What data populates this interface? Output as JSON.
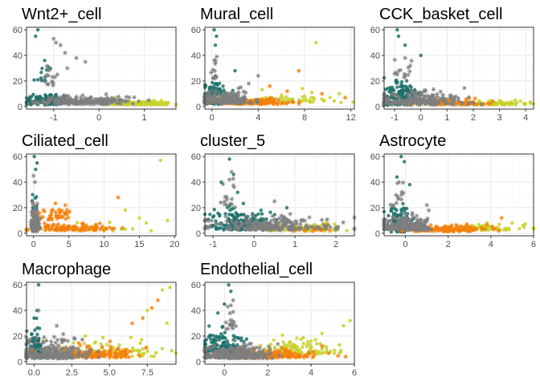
{
  "colors": {
    "teal": "#1b6f6a",
    "grey": "#7f7f7f",
    "orange": "#f57f0a",
    "lime": "#c7d12a",
    "grid_major": "#ebebeb",
    "grid_minor": "#f5f5f5",
    "frame": "#333333"
  },
  "chart_data": [
    {
      "type": "scatter",
      "title": "Wnt2+_cell",
      "xlim": [
        -1.6,
        1.7
      ],
      "ylim": [
        -2,
        62
      ],
      "xticks": [
        -1,
        0,
        1
      ],
      "xtick_labels": [
        "-1",
        "0",
        "1"
      ],
      "yticks": [
        0,
        20,
        40,
        60
      ],
      "ytick_labels": [
        "0",
        "20",
        "40",
        "60"
      ],
      "grid": true,
      "series_used": [
        "teal",
        "grey",
        "lime"
      ],
      "groups": [
        {
          "s": "teal",
          "cx": -1.15,
          "sx": 0.28,
          "cy": 5,
          "sy": 5,
          "n": 130
        },
        {
          "s": "teal",
          "cx": -1.2,
          "sx": 0.15,
          "cy": 26,
          "sy": 10,
          "n": 12
        },
        {
          "s": "lime",
          "cx": 0.9,
          "sx": 0.35,
          "cy": 2.5,
          "sy": 1.5,
          "n": 120
        },
        {
          "s": "grey",
          "cx": -0.3,
          "sx": 0.5,
          "cy": 4,
          "sy": 3,
          "n": 200
        },
        {
          "s": "grey",
          "cx": -1.05,
          "sx": 0.15,
          "cy": 22,
          "sy": 10,
          "n": 15
        }
      ],
      "points": [
        {
          "s": "teal",
          "x": -1.35,
          "y": 60
        },
        {
          "s": "teal",
          "x": -1.4,
          "y": 55
        },
        {
          "s": "teal",
          "x": -1.2,
          "y": 36
        },
        {
          "s": "grey",
          "x": -1.0,
          "y": 53
        },
        {
          "s": "grey",
          "x": -0.95,
          "y": 50
        },
        {
          "s": "grey",
          "x": -0.85,
          "y": 48
        },
        {
          "s": "grey",
          "x": -0.75,
          "y": 42
        },
        {
          "s": "grey",
          "x": -0.5,
          "y": 38
        },
        {
          "s": "grey",
          "x": -0.3,
          "y": 35
        },
        {
          "s": "grey",
          "x": -0.7,
          "y": 30
        }
      ]
    },
    {
      "type": "scatter",
      "title": "Mural_cell",
      "xlim": [
        -0.6,
        12.3
      ],
      "ylim": [
        -2,
        62
      ],
      "xticks": [
        0,
        4,
        8,
        12
      ],
      "xtick_labels": [
        "0",
        "4",
        "8",
        "12"
      ],
      "yticks": [
        0,
        20,
        40,
        60
      ],
      "ytick_labels": [
        "0",
        "20",
        "40",
        "60"
      ],
      "grid": true,
      "series_used": [
        "teal",
        "grey",
        "orange",
        "lime"
      ],
      "groups": [
        {
          "s": "teal",
          "cx": 0.3,
          "sx": 0.5,
          "cy": 8,
          "sy": 9,
          "n": 130
        },
        {
          "s": "lime",
          "cx": 5.5,
          "sx": 2.3,
          "cy": 5,
          "sy": 3,
          "n": 90
        },
        {
          "s": "orange",
          "cx": 3.5,
          "sx": 1.8,
          "cy": 3.5,
          "sy": 2,
          "n": 130
        },
        {
          "s": "grey",
          "cx": 1.2,
          "sx": 1.2,
          "cy": 6,
          "sy": 5,
          "n": 200
        },
        {
          "s": "grey",
          "cx": 0.2,
          "sx": 0.2,
          "cy": 30,
          "sy": 12,
          "n": 14
        }
      ],
      "points": [
        {
          "s": "teal",
          "x": 0.2,
          "y": 60
        },
        {
          "s": "teal",
          "x": 0.4,
          "y": 55
        },
        {
          "s": "teal",
          "x": 0.3,
          "y": 48
        },
        {
          "s": "teal",
          "x": 2.0,
          "y": 28
        },
        {
          "s": "orange",
          "x": 7.5,
          "y": 28
        },
        {
          "s": "orange",
          "x": 5.0,
          "y": 16
        },
        {
          "s": "orange",
          "x": 9.5,
          "y": 10
        },
        {
          "s": "orange",
          "x": 11.5,
          "y": 7
        },
        {
          "s": "orange",
          "x": 6.5,
          "y": 12
        },
        {
          "s": "lime",
          "x": 9.0,
          "y": 50
        },
        {
          "s": "lime",
          "x": 11.0,
          "y": 10
        },
        {
          "s": "lime",
          "x": 7.8,
          "y": 14
        },
        {
          "s": "grey",
          "x": 4.0,
          "y": 24
        },
        {
          "s": "grey",
          "x": 2.5,
          "y": 15
        }
      ]
    },
    {
      "type": "scatter",
      "title": "CCK_basket_cell",
      "xlim": [
        -1.4,
        4.3
      ],
      "ylim": [
        -2,
        62
      ],
      "xticks": [
        -1,
        0,
        1,
        2,
        3,
        4
      ],
      "xtick_labels": [
        "-1",
        "0",
        "1",
        "2",
        "3",
        "4"
      ],
      "yticks": [
        0,
        20,
        40,
        60
      ],
      "ytick_labels": [
        "0",
        "20",
        "40",
        "60"
      ],
      "grid": true,
      "series_used": [
        "teal",
        "grey",
        "orange",
        "lime"
      ],
      "groups": [
        {
          "s": "teal",
          "cx": -0.7,
          "sx": 0.4,
          "cy": 8,
          "sy": 10,
          "n": 140
        },
        {
          "s": "lime",
          "cx": 2.8,
          "sx": 0.7,
          "cy": 2.5,
          "sy": 1.5,
          "n": 70
        },
        {
          "s": "orange",
          "cx": 1.2,
          "sx": 0.8,
          "cy": 3,
          "sy": 2,
          "n": 80
        },
        {
          "s": "grey",
          "cx": 0.0,
          "sx": 0.8,
          "cy": 5,
          "sy": 5,
          "n": 200
        },
        {
          "s": "grey",
          "cx": -0.7,
          "sx": 0.2,
          "cy": 30,
          "sy": 12,
          "n": 14
        }
      ],
      "points": [
        {
          "s": "teal",
          "x": -0.9,
          "y": 60
        },
        {
          "s": "teal",
          "x": -0.85,
          "y": 55
        },
        {
          "s": "teal",
          "x": -0.6,
          "y": 48
        },
        {
          "s": "teal",
          "x": 0.0,
          "y": 40
        },
        {
          "s": "grey",
          "x": -0.6,
          "y": 38
        },
        {
          "s": "grey",
          "x": -0.4,
          "y": 32
        },
        {
          "s": "lime",
          "x": 3.6,
          "y": 5
        },
        {
          "s": "lime",
          "x": 4.0,
          "y": 2
        }
      ]
    },
    {
      "type": "scatter",
      "title": "Ciliated_cell",
      "xlim": [
        -1.0,
        20.2
      ],
      "ylim": [
        -2,
        62
      ],
      "xticks": [
        0,
        5,
        10,
        15,
        20
      ],
      "xtick_labels": [
        "0",
        "5",
        "10",
        "15",
        "20"
      ],
      "yticks": [
        0,
        20,
        40,
        60
      ],
      "ytick_labels": [
        "0",
        "20",
        "40",
        "60"
      ],
      "grid": true,
      "series_used": [
        "teal",
        "grey",
        "orange",
        "lime"
      ],
      "groups": [
        {
          "s": "teal",
          "cx": 0.1,
          "sx": 0.2,
          "cy": 10,
          "sy": 12,
          "n": 80
        },
        {
          "s": "orange",
          "cx": 5,
          "sx": 3,
          "cy": 4,
          "sy": 2.5,
          "n": 110
        },
        {
          "s": "orange",
          "cx": 3,
          "sx": 1.2,
          "cy": 14,
          "sy": 5,
          "n": 40
        },
        {
          "s": "lime",
          "cx": 9,
          "sx": 3,
          "cy": 4,
          "sy": 3,
          "n": 30
        },
        {
          "s": "grey",
          "cx": 0.2,
          "sx": 0.25,
          "cy": 8,
          "sy": 9,
          "n": 180
        }
      ],
      "points": [
        {
          "s": "teal",
          "x": 0.1,
          "y": 60
        },
        {
          "s": "teal",
          "x": 0.5,
          "y": 55
        },
        {
          "s": "teal",
          "x": 0.3,
          "y": 50
        },
        {
          "s": "grey",
          "x": 0.0,
          "y": 45
        },
        {
          "s": "grey",
          "x": 0.2,
          "y": 40
        },
        {
          "s": "orange",
          "x": 12,
          "y": 28
        },
        {
          "s": "orange",
          "x": 4.5,
          "y": 22
        },
        {
          "s": "lime",
          "x": 18,
          "y": 57
        },
        {
          "s": "lime",
          "x": 19,
          "y": 10
        },
        {
          "s": "lime",
          "x": 15,
          "y": 12
        },
        {
          "s": "lime",
          "x": 16,
          "y": 8
        },
        {
          "s": "lime",
          "x": 13,
          "y": 18
        }
      ]
    },
    {
      "type": "scatter",
      "title": "cluster_5",
      "xlim": [
        -1.2,
        2.45
      ],
      "ylim": [
        -2,
        62
      ],
      "xticks": [
        -1,
        0,
        1,
        2
      ],
      "xtick_labels": [
        "-1",
        "0",
        "1",
        "2"
      ],
      "yticks": [
        0,
        20,
        40,
        60
      ],
      "ytick_labels": [
        "0",
        "20",
        "40",
        "60"
      ],
      "grid": true,
      "series_used": [
        "teal",
        "grey",
        "orange",
        "lime"
      ],
      "groups": [
        {
          "s": "teal",
          "cx": -0.3,
          "sx": 0.45,
          "cy": 8,
          "sy": 8,
          "n": 180
        },
        {
          "s": "lime",
          "cx": 1.2,
          "sx": 0.5,
          "cy": 4,
          "sy": 3,
          "n": 110
        },
        {
          "s": "orange",
          "cx": 1.4,
          "sx": 0.3,
          "cy": 3,
          "sy": 2,
          "n": 20
        },
        {
          "s": "grey",
          "cx": 0.4,
          "sx": 0.7,
          "cy": 6,
          "sy": 5,
          "n": 230
        },
        {
          "s": "grey",
          "cx": -0.6,
          "sx": 0.15,
          "cy": 28,
          "sy": 12,
          "n": 15
        }
      ],
      "points": [
        {
          "s": "teal",
          "x": -0.6,
          "y": 58
        },
        {
          "s": "teal",
          "x": -0.5,
          "y": 46
        },
        {
          "s": "teal",
          "x": -0.8,
          "y": 40
        },
        {
          "s": "teal",
          "x": -0.4,
          "y": 32
        },
        {
          "s": "grey",
          "x": -0.55,
          "y": 48
        },
        {
          "s": "grey",
          "x": -0.6,
          "y": 42
        },
        {
          "s": "grey",
          "x": 0.5,
          "y": 25
        },
        {
          "s": "teal",
          "x": 0.8,
          "y": 20
        }
      ]
    },
    {
      "type": "scatter",
      "title": "Astrocyte",
      "xlim": [
        -1.0,
        6.0
      ],
      "ylim": [
        -2,
        62
      ],
      "xticks": [
        0,
        2,
        4,
        6
      ],
      "xtick_labels": [
        "0",
        "2",
        "4",
        "6"
      ],
      "yticks": [
        0,
        20,
        40,
        60
      ],
      "ytick_labels": [
        "0",
        "20",
        "40",
        "60"
      ],
      "grid": true,
      "series_used": [
        "teal",
        "grey",
        "orange",
        "lime"
      ],
      "groups": [
        {
          "s": "teal",
          "cx": -0.3,
          "sx": 0.35,
          "cy": 8,
          "sy": 10,
          "n": 120
        },
        {
          "s": "lime",
          "cx": 3.5,
          "sx": 1.1,
          "cy": 4,
          "sy": 2.5,
          "n": 80
        },
        {
          "s": "orange",
          "cx": 2.0,
          "sx": 1.0,
          "cy": 3,
          "sy": 2,
          "n": 120
        },
        {
          "s": "grey",
          "cx": 0.1,
          "sx": 0.6,
          "cy": 6,
          "sy": 5,
          "n": 200
        },
        {
          "s": "grey",
          "cx": -0.3,
          "sx": 0.2,
          "cy": 28,
          "sy": 12,
          "n": 14
        }
      ],
      "points": [
        {
          "s": "teal",
          "x": -0.2,
          "y": 60
        },
        {
          "s": "teal",
          "x": -0.05,
          "y": 56
        },
        {
          "s": "teal",
          "x": -0.4,
          "y": 44
        },
        {
          "s": "teal",
          "x": 0.2,
          "y": 38
        },
        {
          "s": "grey",
          "x": -0.3,
          "y": 40
        },
        {
          "s": "grey",
          "x": 1.0,
          "y": 22
        },
        {
          "s": "orange",
          "x": 4.5,
          "y": 12
        },
        {
          "s": "lime",
          "x": 5.5,
          "y": 6
        },
        {
          "s": "lime",
          "x": 5.0,
          "y": 8
        }
      ]
    },
    {
      "type": "scatter",
      "title": "Macrophage",
      "xlim": [
        -0.5,
        9.4
      ],
      "ylim": [
        -2,
        62
      ],
      "xticks": [
        0,
        2.5,
        5,
        7.5
      ],
      "xtick_labels": [
        "0.0",
        "2.5",
        "5.0",
        "7.5"
      ],
      "yticks": [
        0,
        20,
        40,
        60
      ],
      "ytick_labels": [
        "0",
        "20",
        "40",
        "60"
      ],
      "grid": true,
      "series_used": [
        "teal",
        "grey",
        "orange",
        "lime"
      ],
      "groups": [
        {
          "s": "teal",
          "cx": 0.1,
          "sx": 0.3,
          "cy": 10,
          "sy": 10,
          "n": 90
        },
        {
          "s": "lime",
          "cx": 5,
          "sx": 1.8,
          "cy": 8,
          "sy": 6,
          "n": 90
        },
        {
          "s": "orange",
          "cx": 3.5,
          "sx": 1.5,
          "cy": 6,
          "sy": 4,
          "n": 150
        },
        {
          "s": "grey",
          "cx": 1.2,
          "sx": 1.2,
          "cy": 6,
          "sy": 5,
          "n": 200
        },
        {
          "s": "grey",
          "cx": 1.5,
          "sx": 1.0,
          "cy": 18,
          "sy": 5,
          "n": 20
        }
      ],
      "points": [
        {
          "s": "teal",
          "x": 0.3,
          "y": 60
        },
        {
          "s": "teal",
          "x": 0.2,
          "y": 40
        },
        {
          "s": "teal",
          "x": 0.0,
          "y": 34
        },
        {
          "s": "grey",
          "x": 0.3,
          "y": 40
        },
        {
          "s": "grey",
          "x": 1.5,
          "y": 28
        },
        {
          "s": "orange",
          "x": 7.8,
          "y": 42
        },
        {
          "s": "orange",
          "x": 8.2,
          "y": 48
        },
        {
          "s": "orange",
          "x": 7.2,
          "y": 34
        },
        {
          "s": "orange",
          "x": 6.5,
          "y": 30
        },
        {
          "s": "lime",
          "x": 8.5,
          "y": 56
        },
        {
          "s": "lime",
          "x": 9.0,
          "y": 58
        },
        {
          "s": "lime",
          "x": 7.5,
          "y": 40
        },
        {
          "s": "lime",
          "x": 8.8,
          "y": 30
        }
      ]
    },
    {
      "type": "scatter",
      "title": "Endothelial_cell",
      "xlim": [
        -0.9,
        6.0
      ],
      "ylim": [
        -2,
        62
      ],
      "xticks": [
        0,
        2,
        4,
        6
      ],
      "xtick_labels": [
        "0",
        "2",
        "4",
        "6"
      ],
      "yticks": [
        0,
        20,
        40,
        60
      ],
      "ytick_labels": [
        "0",
        "20",
        "40",
        "60"
      ],
      "grid": true,
      "series_used": [
        "teal",
        "grey",
        "orange",
        "lime"
      ],
      "groups": [
        {
          "s": "teal",
          "cx": 0.0,
          "sx": 0.5,
          "cy": 10,
          "sy": 10,
          "n": 180
        },
        {
          "s": "lime",
          "cx": 3.3,
          "sx": 1.0,
          "cy": 10,
          "sy": 6,
          "n": 100
        },
        {
          "s": "orange",
          "cx": 2.0,
          "sx": 1.1,
          "cy": 5,
          "sy": 3,
          "n": 170
        },
        {
          "s": "grey",
          "cx": 0.6,
          "sx": 0.8,
          "cy": 6,
          "sy": 5,
          "n": 220
        },
        {
          "s": "grey",
          "cx": 0.3,
          "sx": 0.15,
          "cy": 32,
          "sy": 10,
          "n": 18
        }
      ],
      "points": [
        {
          "s": "teal",
          "x": 0.2,
          "y": 60
        },
        {
          "s": "teal",
          "x": 0.3,
          "y": 55
        },
        {
          "s": "teal",
          "x": 0.0,
          "y": 45
        },
        {
          "s": "teal",
          "x": -0.3,
          "y": 38
        },
        {
          "s": "grey",
          "x": 0.4,
          "y": 48
        },
        {
          "s": "grey",
          "x": 0.3,
          "y": 44
        },
        {
          "s": "lime",
          "x": 5.8,
          "y": 32
        },
        {
          "s": "lime",
          "x": 5.5,
          "y": 28
        },
        {
          "s": "lime",
          "x": 4.5,
          "y": 22
        },
        {
          "s": "orange",
          "x": 4.5,
          "y": 12
        }
      ]
    }
  ]
}
